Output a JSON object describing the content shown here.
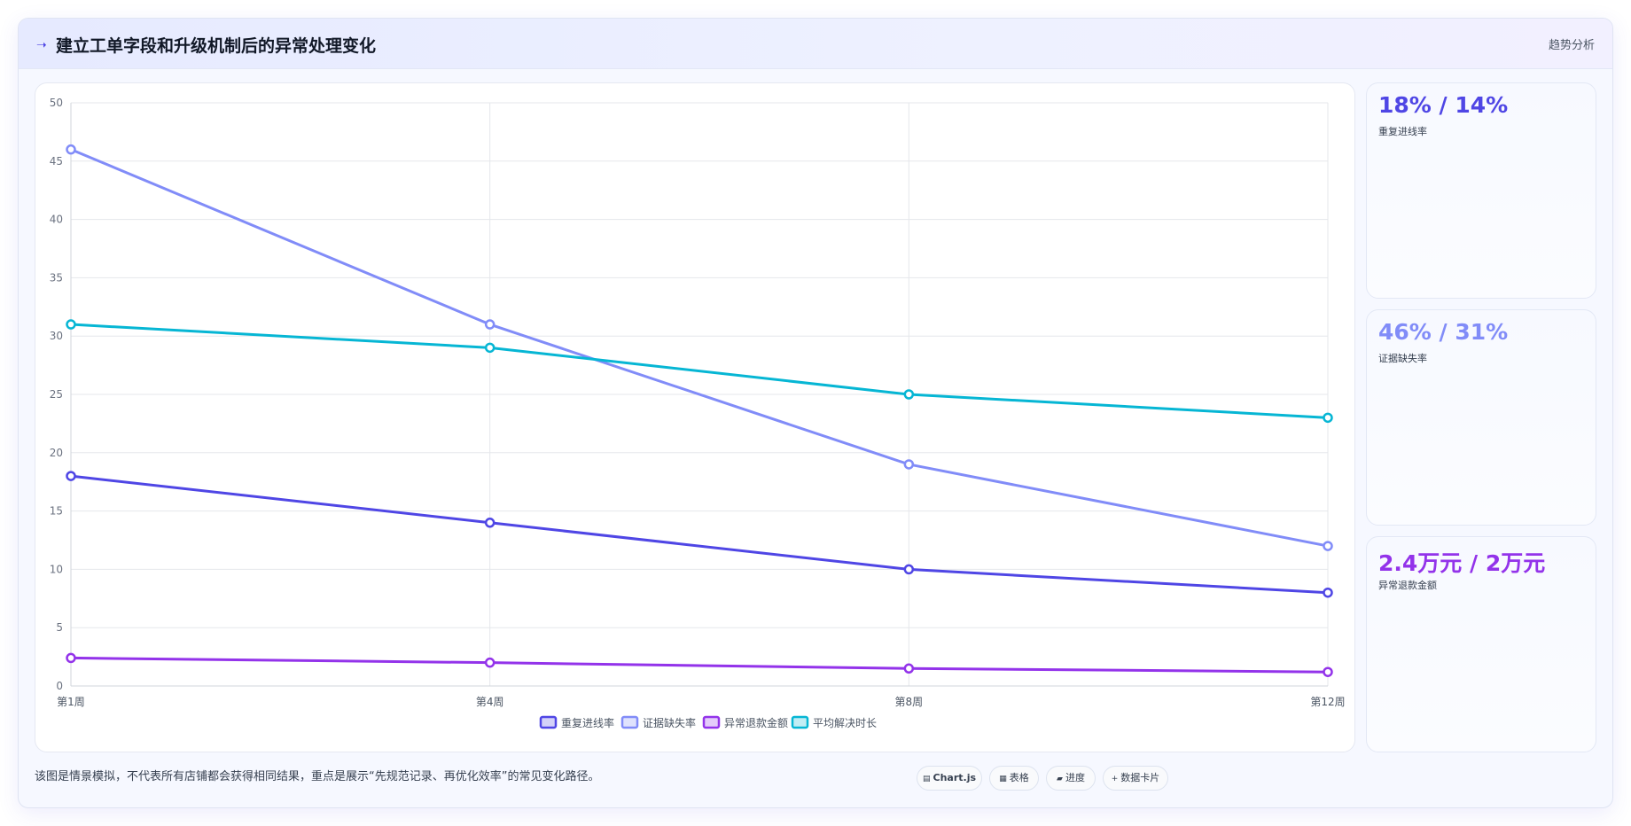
{
  "header": {
    "icon": "sparkle-icon",
    "title": "建立工单字段和升级机制后的异常处理变化",
    "tag": "趋势分析"
  },
  "colors": {
    "repeat": "#4f46e5",
    "evidence": "#818cf8",
    "refund": "#9333ea",
    "resolve": "#06b6d4"
  },
  "chart_data": {
    "type": "line",
    "title": "",
    "xlabel": "",
    "ylabel": "",
    "categories": [
      "第1周",
      "第4周",
      "第8周",
      "第12周"
    ],
    "ylim": [
      0,
      50
    ],
    "yticks": [
      0,
      5,
      10,
      15,
      20,
      25,
      30,
      35,
      40,
      45,
      50
    ],
    "grid": true,
    "legend_position": "bottom",
    "series": [
      {
        "name": "重复进线率",
        "color": "#4f46e5",
        "values": [
          18,
          14,
          10,
          8
        ]
      },
      {
        "name": "证据缺失率",
        "color": "#818cf8",
        "values": [
          46,
          31,
          19,
          12
        ]
      },
      {
        "name": "异常退款金额",
        "color": "#9333ea",
        "values": [
          2.4,
          2,
          1.5,
          1.2
        ]
      },
      {
        "name": "平均解决时长",
        "color": "#06b6d4",
        "values": [
          31,
          29,
          25,
          23
        ]
      }
    ]
  },
  "kpis": [
    {
      "value": "18% / 14%",
      "label": "重复进线率",
      "color": "#4f46e5"
    },
    {
      "value": "46% / 31%",
      "label": "证据缺失率",
      "color": "#818cf8"
    },
    {
      "value": "2.4万元 / 2万元",
      "label": "异常退款金额",
      "color": "#9333ea"
    }
  ],
  "footer": {
    "note": "该图是情景模拟，不代表所有店铺都会获得相同结果，重点是展示“先规范记录、再优化效率”的常见变化路径。",
    "pills": [
      {
        "label": "Chart.js",
        "icon": "chart-icon"
      },
      {
        "label": "表格",
        "icon": "table-icon"
      },
      {
        "label": "进度",
        "icon": "progress-icon"
      },
      {
        "label": "数据卡片",
        "icon": "plus-icon"
      }
    ]
  }
}
